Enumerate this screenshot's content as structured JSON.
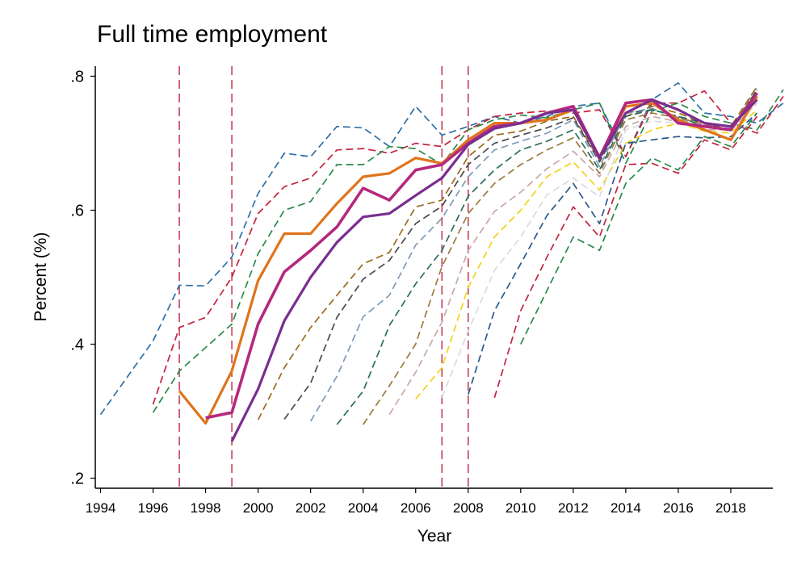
{
  "chart_data": {
    "type": "line",
    "title": "Full time employment",
    "xlabel": "Year",
    "ylabel": "Percent (%)",
    "xlim": [
      1993.8,
      2019.6
    ],
    "ylim": [
      0.185,
      0.815
    ],
    "xticks": [
      1994,
      1996,
      1998,
      2000,
      2002,
      2004,
      2006,
      2008,
      2010,
      2012,
      2014,
      2016,
      2018
    ],
    "yticks": [
      {
        "value": 0.2,
        "label": ".2"
      },
      {
        "value": 0.4,
        "label": ".4"
      },
      {
        "value": 0.6,
        "label": ".6"
      },
      {
        "value": 0.8,
        "label": ".8"
      }
    ],
    "grid": false,
    "reference_lines": [
      1997,
      1999,
      2007,
      2008
    ],
    "reference_line_color": "#c0344d",
    "series": [
      {
        "color": "#2e6fa7",
        "style": "dashed",
        "start": 1994,
        "values": [
          0.295,
          0.35,
          0.405,
          0.488,
          0.487,
          0.53,
          0.625,
          0.685,
          0.68,
          0.725,
          0.723,
          0.695,
          0.755,
          0.712,
          0.725,
          0.74,
          0.73,
          0.74,
          0.755,
          0.76,
          0.68,
          0.765,
          0.79,
          0.745,
          0.74,
          0.73,
          0.76
        ]
      },
      {
        "color": "#c4233f",
        "style": "dashed",
        "start": 1996,
        "values": [
          0.31,
          0.425,
          0.44,
          0.5,
          0.595,
          0.635,
          0.648,
          0.69,
          0.692,
          0.685,
          0.7,
          0.695,
          0.72,
          0.74,
          0.745,
          0.748,
          0.745,
          0.75,
          0.68,
          0.76,
          0.76,
          0.778,
          0.73,
          0.715,
          0.77
        ]
      },
      {
        "color": "#2a8a4a",
        "style": "dashed",
        "start": 1996,
        "values": [
          0.298,
          0.36,
          0.395,
          0.43,
          0.535,
          0.6,
          0.613,
          0.668,
          0.668,
          0.695,
          0.692,
          0.668,
          0.72,
          0.735,
          0.742,
          0.738,
          0.75,
          0.76,
          0.67,
          0.748,
          0.76,
          0.74,
          0.73,
          0.72,
          0.78
        ]
      },
      {
        "color": "#e0741a",
        "style": "solid",
        "width": 3.2,
        "start": 1997,
        "values": [
          0.33,
          0.282,
          0.36,
          0.495,
          0.565,
          0.565,
          0.61,
          0.65,
          0.655,
          0.678,
          0.67,
          0.705,
          0.73,
          0.73,
          0.735,
          0.75,
          0.68,
          0.755,
          0.76,
          0.735,
          0.72,
          0.705,
          0.77
        ]
      },
      {
        "color": "#b5287e",
        "style": "solid",
        "width": 3.6,
        "start": 1998,
        "values": [
          0.29,
          0.298,
          0.43,
          0.508,
          0.54,
          0.575,
          0.633,
          0.615,
          0.66,
          0.668,
          0.7,
          0.725,
          0.73,
          0.745,
          0.755,
          0.678,
          0.76,
          0.765,
          0.73,
          0.725,
          0.72,
          0.775
        ]
      },
      {
        "color": "#7a2e8f",
        "style": "solid",
        "width": 3.2,
        "start": 1999,
        "values": [
          0.255,
          0.333,
          0.435,
          0.5,
          0.552,
          0.59,
          0.595,
          0.622,
          0.648,
          0.698,
          0.722,
          0.73,
          0.745,
          0.75,
          0.678,
          0.745,
          0.765,
          0.75,
          0.73,
          0.725,
          0.765
        ]
      },
      {
        "color": "#9a6a1e",
        "style": "dashed",
        "start": 2000,
        "values": [
          0.287,
          0.365,
          0.425,
          0.473,
          0.52,
          0.537,
          0.605,
          0.615,
          0.68,
          0.712,
          0.718,
          0.733,
          0.74,
          0.675,
          0.74,
          0.755,
          0.745,
          0.73,
          0.725,
          0.785
        ]
      },
      {
        "color": "#4a4a4a",
        "style": "dashed",
        "start": 2001,
        "values": [
          0.288,
          0.342,
          0.44,
          0.497,
          0.525,
          0.58,
          0.606,
          0.668,
          0.7,
          0.712,
          0.723,
          0.738,
          0.672,
          0.745,
          0.75,
          0.74,
          0.73,
          0.72,
          0.78
        ]
      },
      {
        "color": "#7d9ab8",
        "style": "dashed",
        "start": 2002,
        "values": [
          0.285,
          0.352,
          0.441,
          0.473,
          0.548,
          0.588,
          0.65,
          0.69,
          0.703,
          0.715,
          0.735,
          0.665,
          0.745,
          0.752,
          0.738,
          0.725,
          0.722,
          0.77
        ]
      },
      {
        "color": "#2a6e5e",
        "style": "dashed",
        "start": 2003,
        "values": [
          0.28,
          0.33,
          0.428,
          0.49,
          0.54,
          0.621,
          0.66,
          0.69,
          0.703,
          0.72,
          0.66,
          0.74,
          0.75,
          0.74,
          0.725,
          0.72,
          0.78
        ]
      },
      {
        "color": "#9b7a3e",
        "style": "dashed",
        "start": 2004,
        "values": [
          0.28,
          0.338,
          0.4,
          0.516,
          0.595,
          0.64,
          0.668,
          0.69,
          0.708,
          0.655,
          0.735,
          0.745,
          0.738,
          0.728,
          0.72,
          0.785
        ]
      },
      {
        "color": "#c8a8a8",
        "style": "dashed",
        "start": 2005,
        "values": [
          0.295,
          0.358,
          0.433,
          0.54,
          0.598,
          0.627,
          0.662,
          0.688,
          0.65,
          0.725,
          0.74,
          0.732,
          0.72,
          0.72,
          0.76
        ]
      },
      {
        "color": "#f2d21a",
        "style": "dashed",
        "start": 2006,
        "values": [
          0.318,
          0.365,
          0.485,
          0.56,
          0.6,
          0.65,
          0.672,
          0.63,
          0.7,
          0.72,
          0.73,
          0.718,
          0.715,
          0.75
        ]
      },
      {
        "color": "#d8dbe0",
        "style": "dashed",
        "start": 2007,
        "values": [
          0.32,
          0.42,
          0.51,
          0.56,
          0.623,
          0.648,
          0.62,
          0.72,
          0.733,
          0.73,
          0.725,
          0.718,
          0.76
        ]
      },
      {
        "color": "#2a5a8f",
        "style": "dashed",
        "start": 2008,
        "values": [
          0.325,
          0.45,
          0.52,
          0.592,
          0.64,
          0.58,
          0.7,
          0.705,
          0.71,
          0.708,
          0.71,
          0.745
        ]
      },
      {
        "color": "#c4233f",
        "style": "dashed",
        "start": 2009,
        "values": [
          0.32,
          0.45,
          0.53,
          0.605,
          0.56,
          0.668,
          0.67,
          0.655,
          0.705,
          0.69,
          0.74
        ]
      },
      {
        "color": "#2a8a4a",
        "style": "dashed",
        "start": 2010,
        "values": [
          0.4,
          0.48,
          0.56,
          0.54,
          0.64,
          0.678,
          0.66,
          0.71,
          0.695,
          0.745
        ]
      }
    ]
  }
}
